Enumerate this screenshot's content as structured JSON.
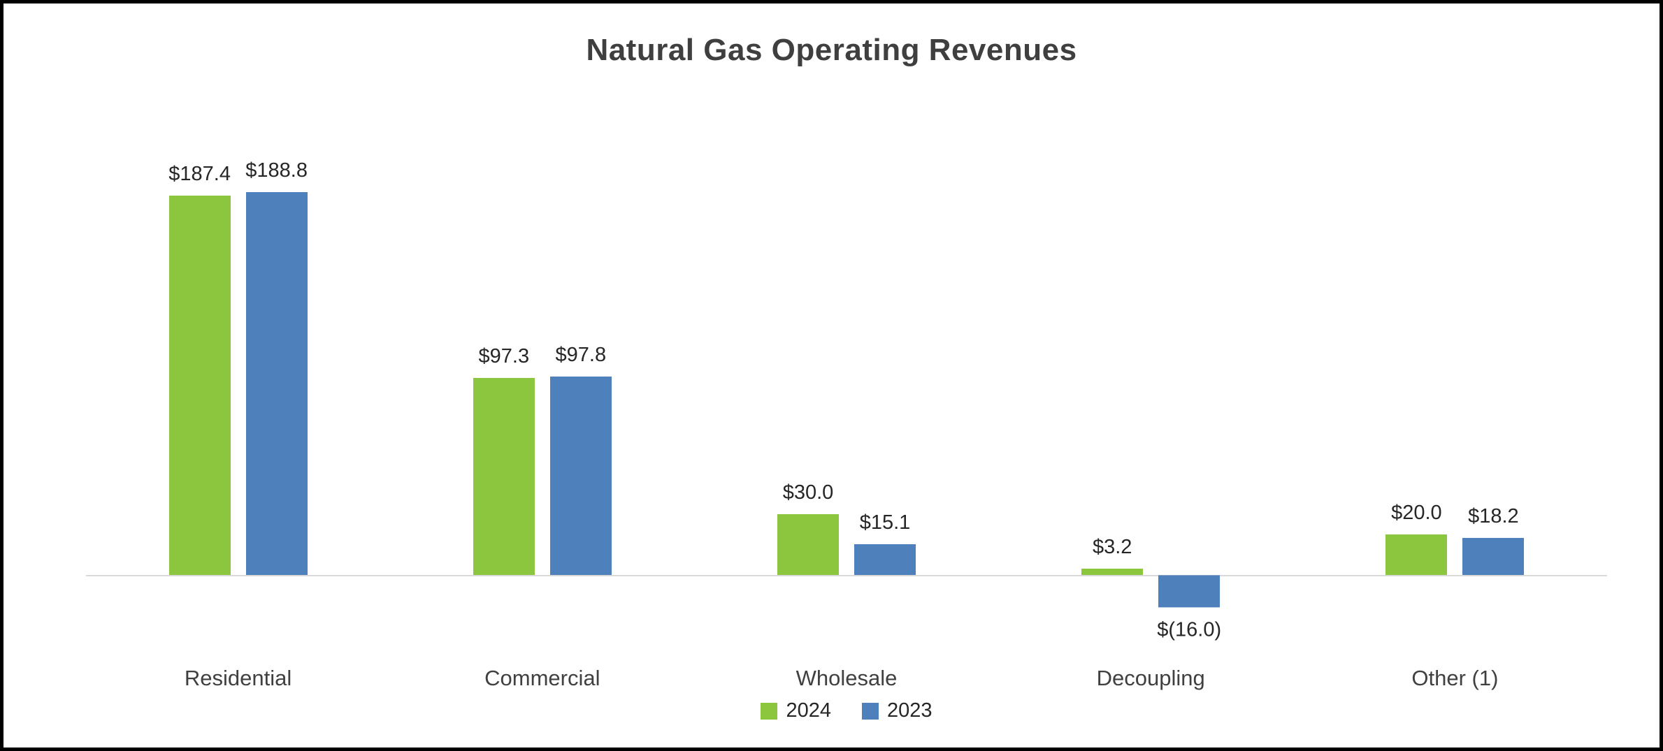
{
  "frame": {
    "background": "#ffffff",
    "border_color": "#000000"
  },
  "chart_data": {
    "type": "bar",
    "title": "Natural Gas Operating Revenues",
    "categories": [
      "Residential",
      "Commercial",
      "Wholesale",
      "Decoupling",
      "Other (1)"
    ],
    "series": [
      {
        "name": "2024",
        "color": "#8CC63E",
        "values": [
          187.4,
          97.3,
          30.0,
          3.2,
          20.0
        ],
        "labels": [
          "$187.4",
          "$97.3",
          "$30.0",
          "$3.2",
          "$20.0"
        ]
      },
      {
        "name": "2023",
        "color": "#4E80BC",
        "values": [
          188.8,
          97.8,
          15.1,
          -16.0,
          18.2
        ],
        "labels": [
          "$188.8",
          "$97.8",
          "$15.1",
          "$(16.0)",
          "$18.2"
        ]
      }
    ],
    "xlabel": "",
    "ylabel": "",
    "ylim": [
      -20,
      200
    ],
    "grid": false,
    "axis_line_color": "#d9d9d9",
    "legend_position": "bottom-center"
  }
}
